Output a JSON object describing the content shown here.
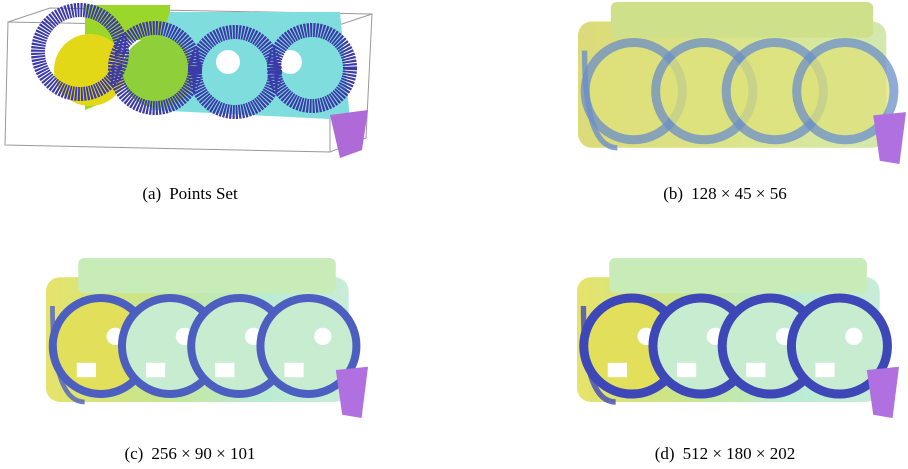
{
  "panels": [
    {
      "label": "(a)",
      "caption": "Points Set"
    },
    {
      "label": "(b)",
      "caption": "128 × 45 × 56"
    },
    {
      "label": "(c)",
      "caption": "256 × 90 × 101"
    },
    {
      "label": "(d)",
      "caption": "512 × 180 × 202"
    }
  ]
}
